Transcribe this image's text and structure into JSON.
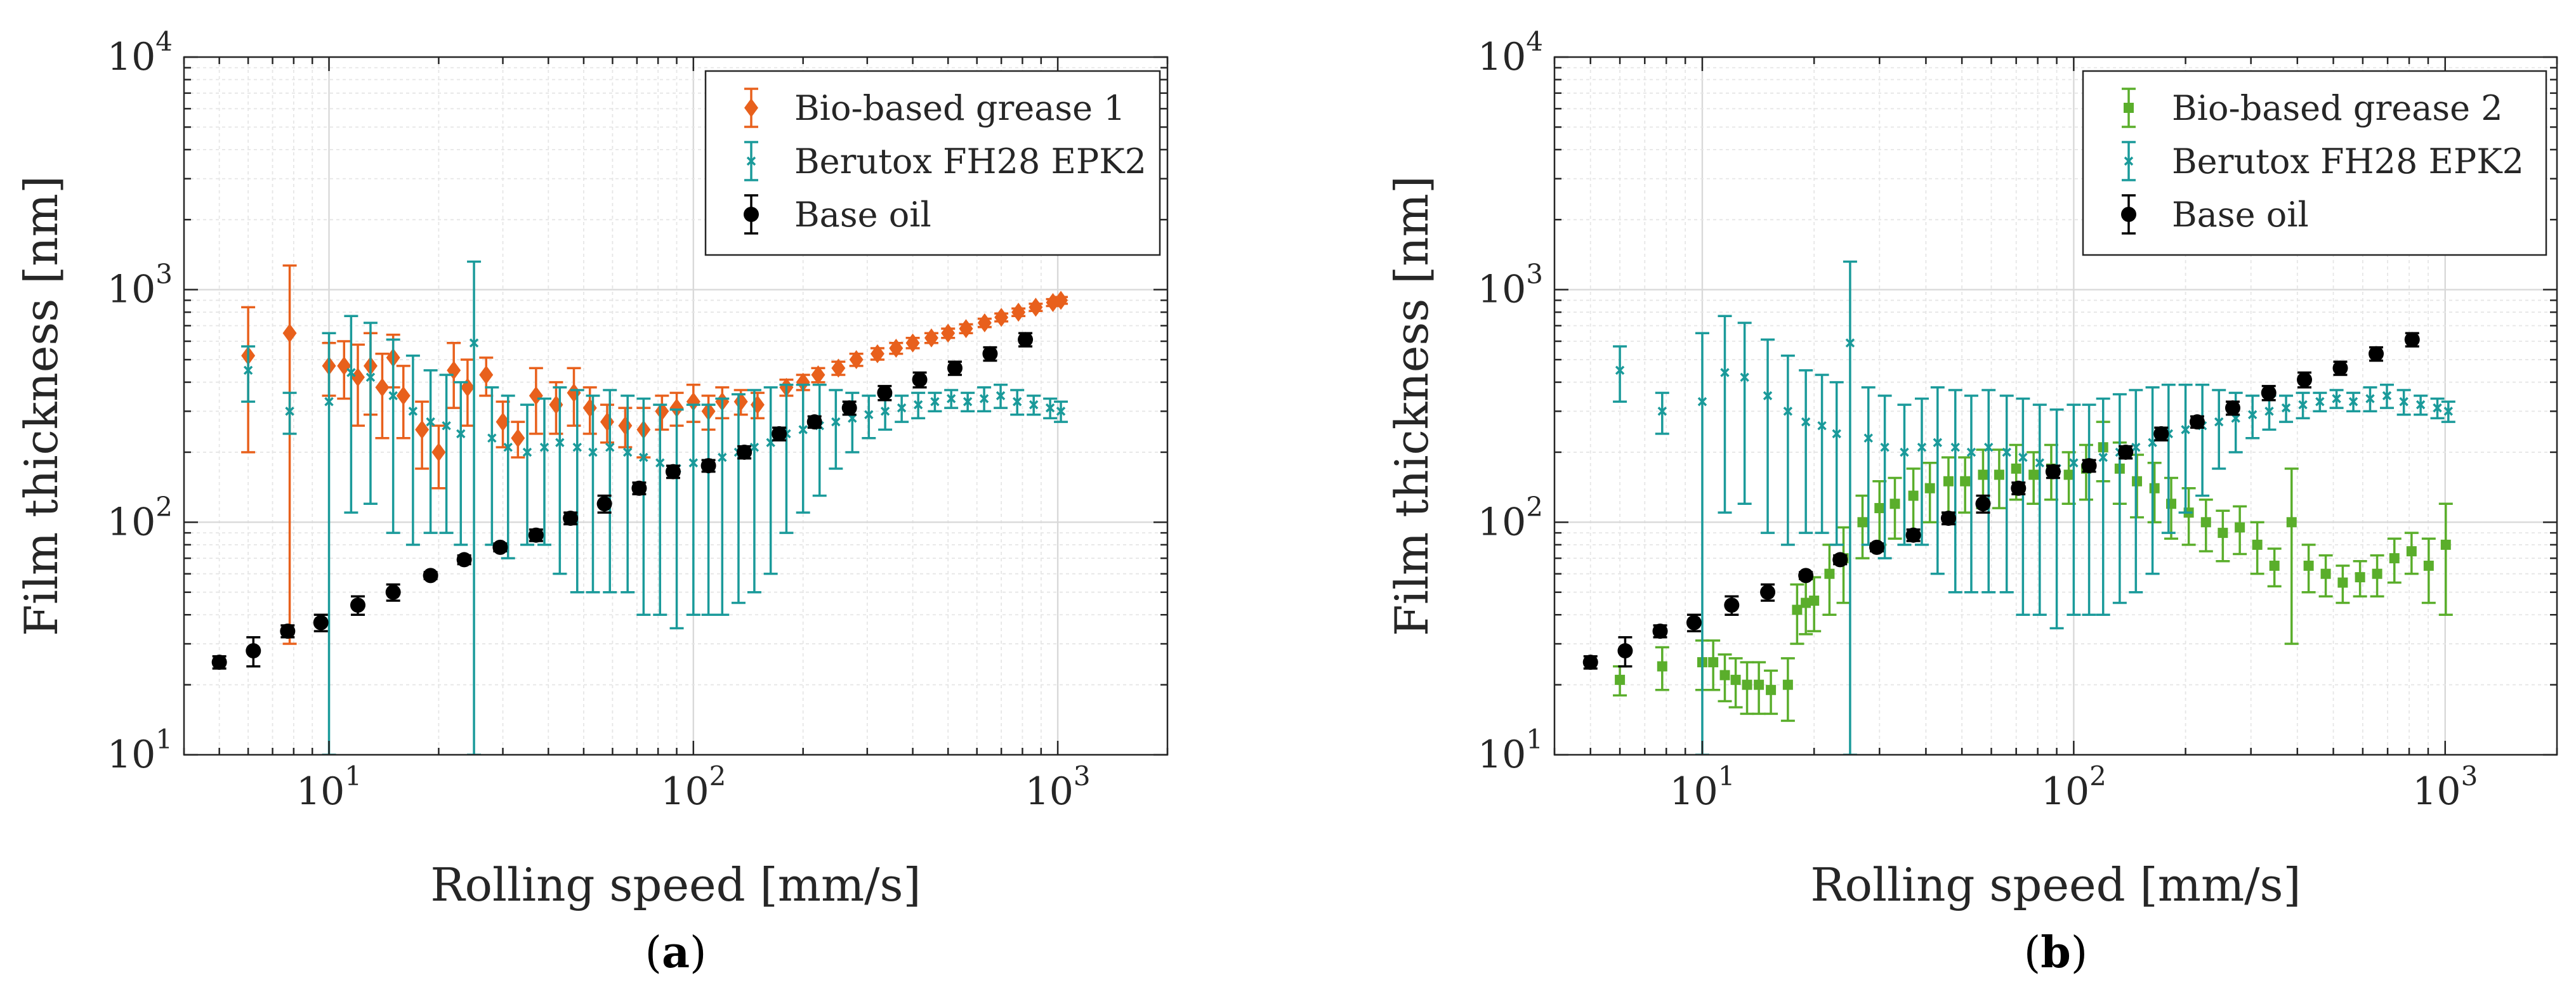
{
  "chart_data": [
    {
      "type": "scatter",
      "panel_label_open": "(",
      "panel_label": "a",
      "panel_label_close": ")",
      "title": "",
      "xlabel": "Rolling speed [mm/s]",
      "ylabel": "Film thickness [nm]",
      "xscale": "log",
      "yscale": "log",
      "xlim": [
        4,
        2000
      ],
      "ylim": [
        10,
        10000
      ],
      "xticks": [
        {
          "value": 10,
          "base": "10",
          "exp": "1"
        },
        {
          "value": 100,
          "base": "10",
          "exp": "2"
        },
        {
          "value": 1000,
          "base": "10",
          "exp": "3"
        }
      ],
      "yticks": [
        {
          "value": 10,
          "base": "10",
          "exp": "1"
        },
        {
          "value": 100,
          "base": "10",
          "exp": "2"
        },
        {
          "value": 1000,
          "base": "10",
          "exp": "3"
        },
        {
          "value": 10000,
          "base": "10",
          "exp": "4"
        }
      ],
      "grid": true,
      "legend_position": "top-right",
      "series": [
        {
          "name": "Bio-based grease 1",
          "color": "#E8601C",
          "marker": "diamond",
          "x": [
            6.0,
            7.8,
            10.0,
            11.0,
            12.0,
            13.0,
            14.0,
            15.0,
            16.0,
            18.0,
            20.0,
            22.0,
            24.0,
            27.0,
            30.0,
            33.0,
            37.0,
            42.0,
            47.0,
            52.0,
            58.0,
            65.0,
            73.0,
            82.0,
            90.0,
            100.0,
            110.0,
            120.0,
            135.0,
            150.0,
            180.0,
            200.0,
            220.0,
            250.0,
            280.0,
            320.0,
            360.0,
            400.0,
            450.0,
            500.0,
            560.0,
            630.0,
            700.0,
            780.0,
            870.0,
            970.0,
            1020.0
          ],
          "y": [
            520,
            650,
            470,
            470,
            420,
            470,
            380,
            510,
            350,
            250,
            200,
            450,
            380,
            430,
            270,
            230,
            350,
            320,
            360,
            310,
            270,
            260,
            250,
            300,
            310,
            330,
            300,
            330,
            330,
            320,
            380,
            400,
            430,
            460,
            500,
            530,
            560,
            590,
            620,
            650,
            680,
            720,
            760,
            800,
            840,
            880,
            900
          ],
          "err": [
            320,
            620,
            120,
            130,
            160,
            180,
            150,
            130,
            120,
            80,
            60,
            140,
            120,
            80,
            60,
            40,
            110,
            80,
            100,
            70,
            50,
            50,
            60,
            50,
            50,
            60,
            50,
            50,
            40,
            40,
            30,
            30,
            30,
            30,
            30,
            30,
            30,
            30,
            30,
            30,
            30,
            30,
            30,
            30,
            30,
            30,
            30
          ]
        },
        {
          "name": "Berutox FH28 EPK2",
          "color": "#1A9A9A",
          "marker": "x",
          "x": [
            6.0,
            7.8,
            10.0,
            11.5,
            13.0,
            15.0,
            17.0,
            19.0,
            21.0,
            23.0,
            25.0,
            28.0,
            31.0,
            35.0,
            39.0,
            43.0,
            48.0,
            53.0,
            59.0,
            66.0,
            73.0,
            81.0,
            90.0,
            100.0,
            110.0,
            120.0,
            133.0,
            147.0,
            163.0,
            180.0,
            200.0,
            222.0,
            246.0,
            273.0,
            303.0,
            336.0,
            373.0,
            414.0,
            460.0,
            510.0,
            566.0,
            628.0,
            697.0,
            774.0,
            859.0,
            953.0,
            1020.0
          ],
          "y": [
            450,
            300,
            330,
            440,
            420,
            350,
            300,
            270,
            260,
            240,
            590,
            230,
            210,
            200,
            210,
            220,
            210,
            200,
            210,
            200,
            190,
            180,
            170,
            180,
            180,
            190,
            200,
            210,
            220,
            240,
            250,
            260,
            270,
            280,
            290,
            300,
            310,
            320,
            330,
            340,
            330,
            340,
            350,
            330,
            320,
            310,
            300
          ],
          "err": [
            120,
            60,
            320,
            330,
            300,
            260,
            220,
            180,
            170,
            160,
            730,
            150,
            140,
            120,
            130,
            160,
            160,
            150,
            160,
            150,
            150,
            140,
            135,
            140,
            140,
            150,
            155,
            160,
            160,
            150,
            140,
            130,
            100,
            80,
            60,
            50,
            40,
            40,
            30,
            30,
            30,
            40,
            40,
            40,
            30,
            30,
            30
          ]
        },
        {
          "name": "Base oil",
          "color": "#000000",
          "marker": "circle",
          "x": [
            5,
            6.2,
            7.7,
            9.5,
            12,
            15,
            19,
            23.5,
            29.5,
            37,
            46,
            57,
            71,
            88,
            110,
            138,
            172,
            215,
            268,
            335,
            418,
            522,
            652,
            815
          ],
          "y": [
            25,
            28,
            34,
            37,
            44,
            50,
            59,
            69,
            78,
            88,
            104,
            120,
            140,
            165,
            175,
            200,
            240,
            270,
            310,
            360,
            410,
            460,
            530,
            610
          ],
          "err": [
            1.5,
            4,
            2,
            3,
            4,
            4,
            2,
            3,
            3,
            5,
            6,
            10,
            8,
            10,
            10,
            12,
            15,
            15,
            20,
            25,
            30,
            30,
            35,
            40
          ]
        }
      ]
    },
    {
      "type": "scatter",
      "panel_label_open": "(",
      "panel_label": "b",
      "panel_label_close": ")",
      "title": "",
      "xlabel": "Rolling speed [mm/s]",
      "ylabel": "Film thickness [nm]",
      "xscale": "log",
      "yscale": "log",
      "xlim": [
        4,
        2000
      ],
      "ylim": [
        10,
        10000
      ],
      "xticks": [
        {
          "value": 10,
          "base": "10",
          "exp": "1"
        },
        {
          "value": 100,
          "base": "10",
          "exp": "2"
        },
        {
          "value": 1000,
          "base": "10",
          "exp": "3"
        }
      ],
      "yticks": [
        {
          "value": 10,
          "base": "10",
          "exp": "1"
        },
        {
          "value": 100,
          "base": "10",
          "exp": "2"
        },
        {
          "value": 1000,
          "base": "10",
          "exp": "3"
        },
        {
          "value": 10000,
          "base": "10",
          "exp": "4"
        }
      ],
      "grid": true,
      "legend_position": "top-right",
      "series": [
        {
          "name": "Bio-based grease 2",
          "color": "#5AAE2B",
          "marker": "square",
          "x": [
            6.0,
            7.8,
            10.0,
            10.7,
            11.5,
            12.3,
            13.2,
            14.2,
            15.3,
            17.0,
            18.0,
            19.0,
            20.0,
            22.0,
            24.0,
            27.0,
            30.0,
            33.0,
            37.0,
            41.0,
            46.0,
            51.0,
            57.0,
            63.0,
            70.0,
            78.0,
            87.0,
            97.0,
            108.0,
            120.0,
            133.0,
            148.0,
            165.0,
            183.0,
            204.0,
            227.0,
            252.0,
            280.0,
            312.0,
            347.0,
            386.0,
            429.0,
            477.0,
            530.0,
            590.0,
            656.0,
            730.0,
            812.0,
            903.0,
            1004.0
          ],
          "y": [
            21,
            24,
            25,
            25,
            22,
            21,
            20,
            20,
            19,
            20,
            42,
            45,
            46,
            60,
            70,
            100,
            115,
            120,
            130,
            140,
            150,
            150,
            160,
            160,
            170,
            160,
            170,
            160,
            170,
            210,
            170,
            150,
            140,
            120,
            110,
            100,
            90,
            95,
            80,
            65,
            100,
            65,
            60,
            55,
            58,
            60,
            70,
            75,
            65,
            80
          ],
          "err": [
            3,
            5,
            6,
            6,
            5,
            5,
            5,
            5,
            4,
            6,
            12,
            12,
            12,
            20,
            25,
            30,
            35,
            35,
            40,
            40,
            40,
            40,
            45,
            45,
            45,
            40,
            45,
            40,
            45,
            60,
            50,
            45,
            40,
            35,
            30,
            25,
            22,
            22,
            20,
            12,
            70,
            15,
            12,
            10,
            10,
            12,
            15,
            15,
            20,
            40
          ]
        },
        {
          "name": "Berutox FH28 EPK2",
          "color": "#1A9A9A",
          "marker": "x",
          "x": [
            6.0,
            7.8,
            10.0,
            11.5,
            13.0,
            15.0,
            17.0,
            19.0,
            21.0,
            23.0,
            25.0,
            28.0,
            31.0,
            35.0,
            39.0,
            43.0,
            48.0,
            53.0,
            59.0,
            66.0,
            73.0,
            81.0,
            90.0,
            100.0,
            110.0,
            120.0,
            133.0,
            147.0,
            163.0,
            180.0,
            200.0,
            222.0,
            246.0,
            273.0,
            303.0,
            336.0,
            373.0,
            414.0,
            460.0,
            510.0,
            566.0,
            628.0,
            697.0,
            774.0,
            859.0,
            953.0,
            1020.0
          ],
          "y": [
            450,
            300,
            330,
            440,
            420,
            350,
            300,
            270,
            260,
            240,
            590,
            230,
            210,
            200,
            210,
            220,
            210,
            200,
            210,
            200,
            190,
            180,
            170,
            180,
            180,
            190,
            200,
            210,
            220,
            240,
            250,
            260,
            270,
            280,
            290,
            300,
            310,
            320,
            330,
            340,
            330,
            340,
            350,
            330,
            320,
            310,
            300
          ],
          "err": [
            120,
            60,
            320,
            330,
            300,
            260,
            220,
            180,
            170,
            160,
            730,
            150,
            140,
            120,
            130,
            160,
            160,
            150,
            160,
            150,
            150,
            140,
            135,
            140,
            140,
            150,
            155,
            160,
            160,
            150,
            140,
            130,
            100,
            80,
            60,
            50,
            40,
            40,
            30,
            30,
            30,
            40,
            40,
            40,
            30,
            30,
            30
          ]
        },
        {
          "name": "Base oil",
          "color": "#000000",
          "marker": "circle",
          "x": [
            5,
            6.2,
            7.7,
            9.5,
            12,
            15,
            19,
            23.5,
            29.5,
            37,
            46,
            57,
            71,
            88,
            110,
            138,
            172,
            215,
            268,
            335,
            418,
            522,
            652,
            815
          ],
          "y": [
            25,
            28,
            34,
            37,
            44,
            50,
            59,
            69,
            78,
            88,
            104,
            120,
            140,
            165,
            175,
            200,
            240,
            270,
            310,
            360,
            410,
            460,
            530,
            610
          ],
          "err": [
            1.5,
            4,
            2,
            3,
            4,
            4,
            2,
            3,
            3,
            5,
            6,
            10,
            8,
            10,
            10,
            12,
            15,
            15,
            20,
            25,
            30,
            30,
            35,
            40
          ]
        }
      ]
    }
  ]
}
